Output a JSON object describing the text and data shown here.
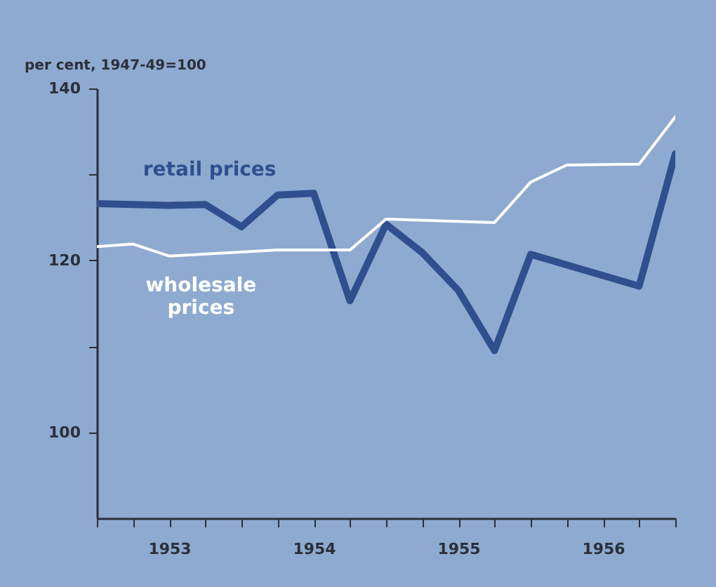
{
  "chart_data": {
    "type": "line",
    "ylabel": "per cent, 1947-49=100",
    "xlim": [
      1953,
      1957
    ],
    "ylim": [
      90,
      140
    ],
    "xticks": [
      {
        "value": 1953,
        "label": null
      },
      {
        "value": 1953.25,
        "label": null
      },
      {
        "value": 1953.5,
        "label": "1953"
      },
      {
        "value": 1953.75,
        "label": null
      },
      {
        "value": 1954,
        "label": null
      },
      {
        "value": 1954.25,
        "label": null
      },
      {
        "value": 1954.5,
        "label": "1954"
      },
      {
        "value": 1954.75,
        "label": null
      },
      {
        "value": 1955,
        "label": null
      },
      {
        "value": 1955.25,
        "label": null
      },
      {
        "value": 1955.5,
        "label": "1955"
      },
      {
        "value": 1955.75,
        "label": null
      },
      {
        "value": 1956,
        "label": null
      },
      {
        "value": 1956.25,
        "label": null
      },
      {
        "value": 1956.5,
        "label": "1956"
      },
      {
        "value": 1956.75,
        "label": null
      },
      {
        "value": 1957,
        "label": null
      }
    ],
    "yticks": [
      100,
      {
        "value": 110,
        "label": null
      },
      120,
      {
        "value": 130,
        "label": null
      },
      140
    ],
    "grid": false,
    "marker": "none",
    "line_style": "solid",
    "series": [
      {
        "name": "retail prices",
        "color": "#2f4f8f",
        "x": [
          1953,
          1953.5,
          1953.75,
          1954,
          1954.25,
          1954.5,
          1954.75,
          1955,
          1955.25,
          1955.5,
          1955.75,
          1956,
          1956.75,
          1957
        ],
        "values": [
          126.6,
          126.4,
          126.5,
          123.9,
          127.6,
          127.8,
          115.3,
          124.2,
          120.9,
          116.5,
          109.5,
          120.7,
          117.0,
          132.4
        ]
      },
      {
        "name": "wholesale prices",
        "color": "#ffffff",
        "x": [
          1953,
          1953.25,
          1953.5,
          1954.25,
          1954.75,
          1955,
          1955.75,
          1956,
          1956.25,
          1956.75,
          1957
        ],
        "values": [
          121.6,
          121.9,
          120.5,
          121.2,
          121.2,
          124.8,
          124.4,
          129.1,
          131.1,
          131.2,
          136.7
        ]
      }
    ]
  }
}
